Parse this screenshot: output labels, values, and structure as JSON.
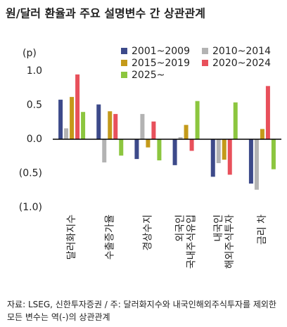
{
  "chart_data": {
    "type": "bar",
    "title": "원/달러 환율과 주요 설명변수 간 상관관계",
    "y_label": "(p)",
    "categories": [
      "달러화지수",
      "수출증가율",
      "경상수지",
      "외국인\n국내주식유입",
      "내국인\n해외주식투자",
      "금리 차"
    ],
    "series": [
      {
        "name": "2001~2009",
        "color": "#3d4a8a",
        "values": [
          0.58,
          0.51,
          -0.29,
          -0.38,
          -0.55,
          -0.65
        ]
      },
      {
        "name": "2010~2014",
        "color": "#b3b3b3",
        "values": [
          0.16,
          -0.34,
          0.37,
          0.03,
          -0.35,
          -0.74
        ]
      },
      {
        "name": "2015~2019",
        "color": "#c49a1a",
        "values": [
          0.62,
          0.41,
          -0.12,
          0.21,
          -0.3,
          0.15
        ]
      },
      {
        "name": "2020~2024",
        "color": "#e8505b",
        "values": [
          0.95,
          0.37,
          0.26,
          -0.17,
          -0.52,
          0.78
        ]
      },
      {
        "name": "2025~",
        "color": "#8cc63f",
        "values": [
          0.4,
          -0.24,
          -0.31,
          0.56,
          0.54,
          -0.44
        ]
      }
    ],
    "ylim": [
      -1.0,
      1.0
    ],
    "yticks": [
      {
        "value": 1.0,
        "label": "1.0"
      },
      {
        "value": 0.5,
        "label": "0.5"
      },
      {
        "value": 0.0,
        "label": "0.0"
      },
      {
        "value": -0.5,
        "label": "(0.5)"
      },
      {
        "value": -1.0,
        "label": "(1.0)"
      }
    ],
    "note": "자료: LSEG, 신한투자증권 / 주: 달러화지수와 내국인해외주식투자를 제외한 모든 변수는 역(-)의 상관관계"
  }
}
